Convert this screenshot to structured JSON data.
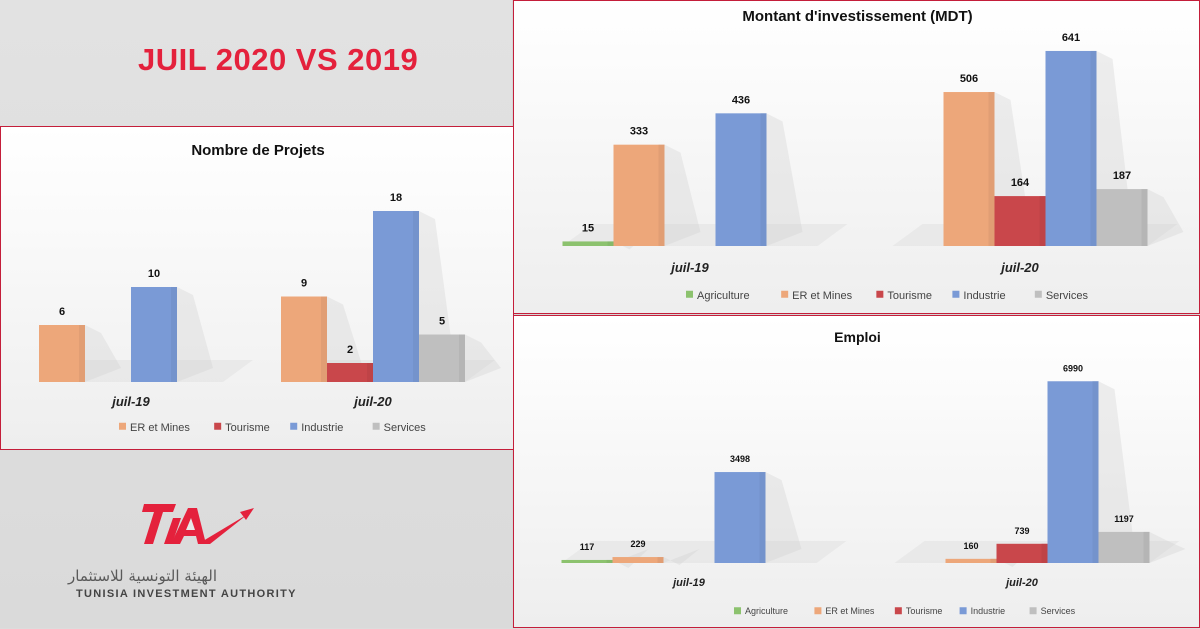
{
  "headline": "JUIL 2020 VS 2019",
  "logo": {
    "mark": "TIA",
    "arabic": "الهيئة التونسية للاستثمار",
    "english": "TUNISIA INVESTMENT AUTHORITY",
    "color": "#e4213c"
  },
  "colors": {
    "Agriculture": "#8cc26e",
    "ER et Mines": "#eda77a",
    "Tourisme": "#c9474b",
    "Industrie": "#7a9ad6",
    "Services": "#bfbfbf"
  },
  "chart_data": [
    {
      "id": "projets",
      "type": "bar",
      "title": "Nombre de Projets",
      "categories": [
        "juil-19",
        "juil-20"
      ],
      "series": [
        {
          "name": "ER et Mines",
          "values": [
            6,
            9
          ]
        },
        {
          "name": "Tourisme",
          "values": [
            null,
            2
          ]
        },
        {
          "name": "Industrie",
          "values": [
            10,
            18
          ]
        },
        {
          "name": "Services",
          "values": [
            null,
            5
          ]
        }
      ],
      "ylim": [
        0,
        20
      ],
      "grid": false,
      "legend": "bottom"
    },
    {
      "id": "montant",
      "type": "bar",
      "title": "Montant d'investissement (MDT)",
      "categories": [
        "juil-19",
        "juil-20"
      ],
      "series": [
        {
          "name": "Agriculture",
          "values": [
            15,
            null
          ]
        },
        {
          "name": "ER et Mines",
          "values": [
            333,
            506
          ]
        },
        {
          "name": "Tourisme",
          "values": [
            null,
            164
          ]
        },
        {
          "name": "Industrie",
          "values": [
            436,
            641
          ]
        },
        {
          "name": "Services",
          "values": [
            null,
            187
          ]
        }
      ],
      "ylim": [
        0,
        700
      ],
      "grid": false,
      "legend": "bottom"
    },
    {
      "id": "emploi",
      "type": "bar",
      "title": "Emploi",
      "categories": [
        "juil-19",
        "juil-20"
      ],
      "series": [
        {
          "name": "Agriculture",
          "values": [
            117,
            null
          ]
        },
        {
          "name": "ER et Mines",
          "values": [
            229,
            160
          ]
        },
        {
          "name": "Tourisme",
          "values": [
            null,
            739
          ]
        },
        {
          "name": "Industrie",
          "values": [
            3498,
            6990
          ]
        },
        {
          "name": "Services",
          "values": [
            null,
            1197
          ]
        }
      ],
      "ylim": [
        0,
        7500
      ],
      "grid": false,
      "legend": "bottom"
    }
  ]
}
